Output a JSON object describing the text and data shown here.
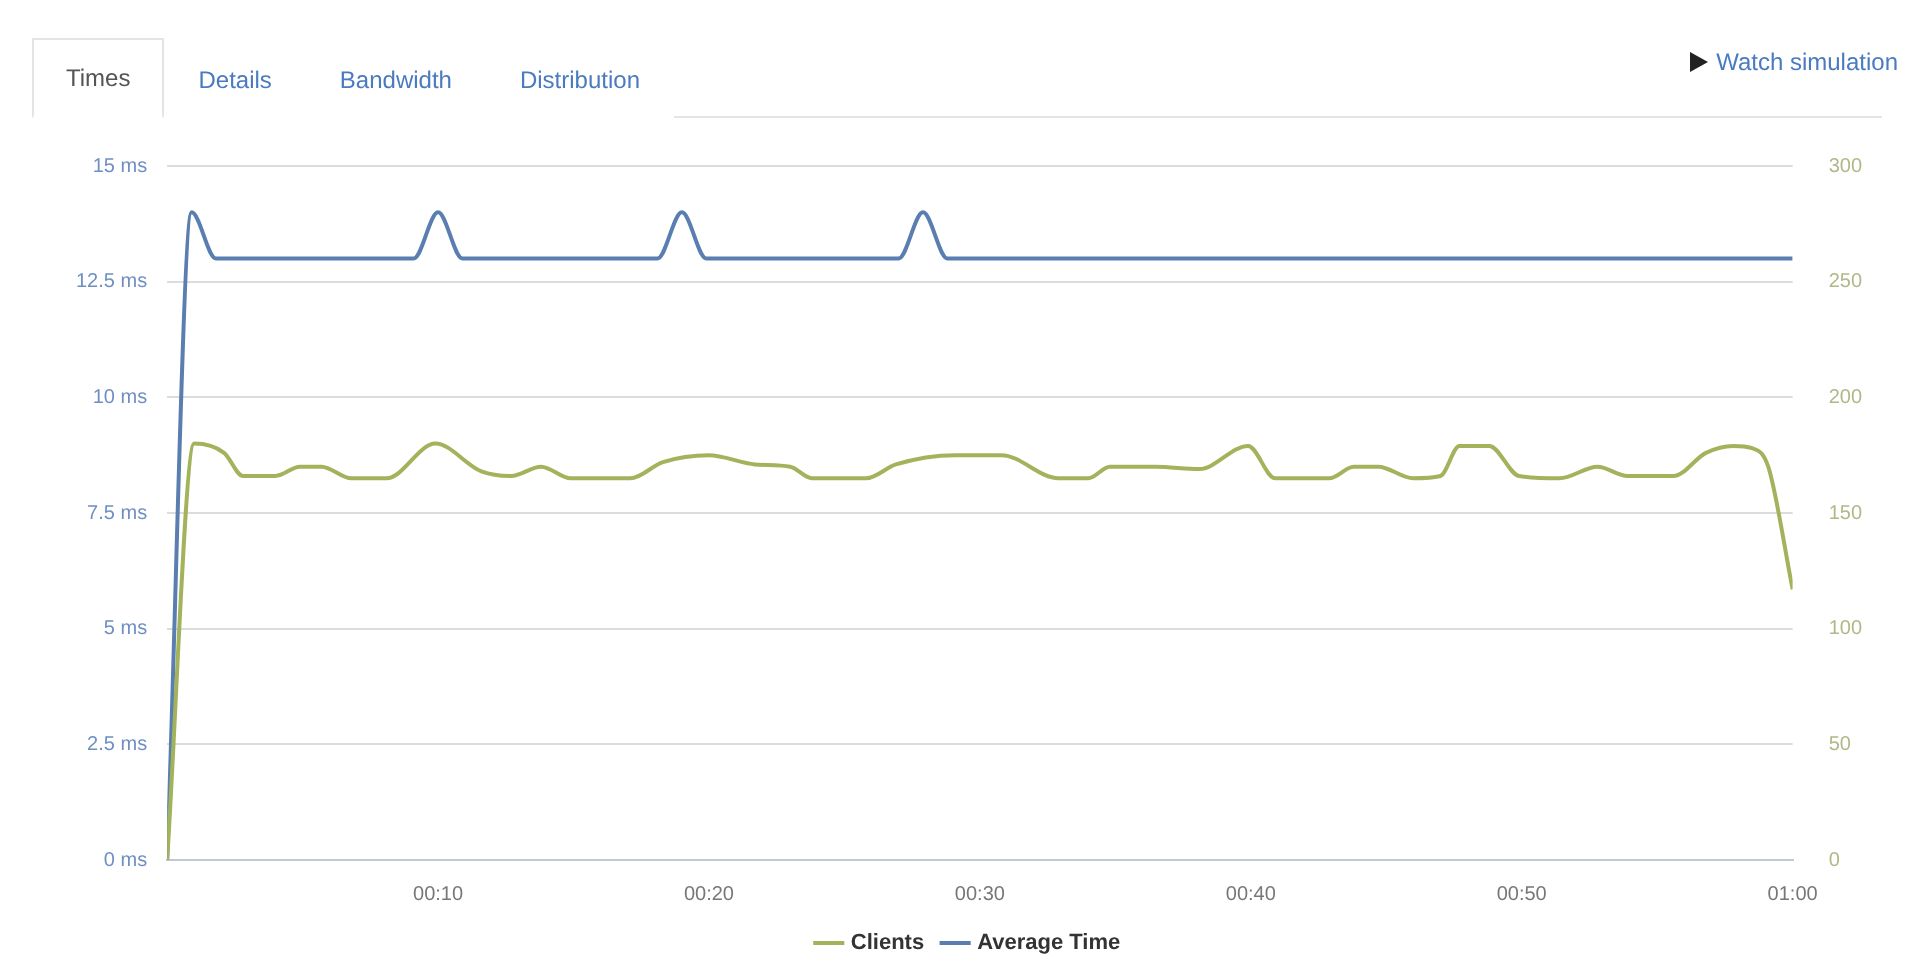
{
  "chart_data": {
    "type": "line",
    "annotations": [
      "Times",
      "Details",
      "Bandwidth",
      "Distribution",
      "Watch simulation"
    ],
    "xlim": [
      0,
      60
    ],
    "xticks": [
      {
        "value": 10,
        "label": "00:10"
      },
      {
        "value": 20,
        "label": "00:20"
      },
      {
        "value": 30,
        "label": "00:30"
      },
      {
        "value": 40,
        "label": "00:40"
      },
      {
        "value": 50,
        "label": "00:50"
      },
      {
        "value": 60,
        "label": "01:00"
      }
    ],
    "ylim": [
      0,
      15
    ],
    "yticks": [
      {
        "value": 0,
        "label": "0 ms"
      },
      {
        "value": 2.5,
        "label": "2.5 ms"
      },
      {
        "value": 5,
        "label": "5 ms"
      },
      {
        "value": 7.5,
        "label": "7.5 ms"
      },
      {
        "value": 10,
        "label": "10 ms"
      },
      {
        "value": 12.5,
        "label": "12.5 ms"
      },
      {
        "value": 15,
        "label": "15 ms"
      }
    ],
    "y2lim": [
      0,
      300
    ],
    "y2ticks": [
      0,
      50,
      100,
      150,
      200,
      250,
      300
    ],
    "grid": "y",
    "legend": "bottom",
    "marker": "none",
    "line_style": "solid",
    "series": [
      {
        "name": "Clients",
        "color": "#a3b35c",
        "axis": "y2",
        "x": [
          0,
          1,
          2.1,
          2.8,
          4,
          4.9,
          5.7,
          6.8,
          8.1,
          9.9,
          11.6,
          12.7,
          13.8,
          14.9,
          17.1,
          18.3,
          20,
          21.7,
          23,
          23.8,
          25.8,
          26.9,
          29.1,
          30.8,
          32.9,
          34,
          34.8,
          36.5,
          38.1,
          39.9,
          40.9,
          42.9,
          43.8,
          44.7,
          46,
          47,
          47.7,
          48.8,
          49.9,
          51.4,
          52.8,
          53.9,
          55.6,
          56.8,
          57.8,
          58.5,
          59.1,
          60
        ],
        "values": [
          0,
          180,
          176,
          166,
          166,
          170,
          170,
          165,
          165,
          180,
          168,
          166,
          170,
          165,
          165,
          172,
          175,
          171,
          170,
          165,
          165,
          171,
          175,
          175,
          165,
          165,
          170,
          170,
          169,
          179,
          165,
          165,
          170,
          170,
          165,
          166,
          179,
          179,
          166,
          165,
          170,
          166,
          166,
          176,
          179,
          178,
          170,
          117
        ]
      },
      {
        "name": "Average Time",
        "color": "#5a7eb0",
        "x": [
          0,
          0.9,
          1.8,
          9.1,
          10,
          10.9,
          18.1,
          19,
          19.9,
          27,
          27.9,
          28.8,
          60
        ],
        "values": [
          0,
          14,
          13,
          13,
          14,
          13,
          13,
          14,
          13,
          13,
          14,
          13,
          13
        ]
      }
    ]
  }
}
